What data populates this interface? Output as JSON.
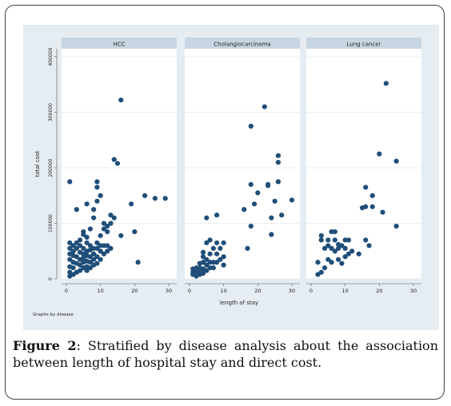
{
  "figure": {
    "label": "Figure 2",
    "caption": ": Stratified by disease analysis about the association between length of hospital stay and direct cost."
  },
  "chart_data": {
    "type": "scatter",
    "xlabel": "length of stay",
    "ylabel": "total cost",
    "note": "Graphs by disease",
    "xlim": [
      0,
      30
    ],
    "ylim": [
      0,
      400000
    ],
    "xticks": [
      0,
      10,
      20,
      30
    ],
    "yticks": [
      0,
      100000,
      200000,
      300000,
      400000
    ],
    "colors": {
      "point": "#1f4e79",
      "panel_bg": "#ffffff",
      "strip_bg": "#c8d6e3",
      "outer_bg": "#e5ecf2"
    },
    "panels": [
      {
        "title": "HCC",
        "points": [
          [
            1,
            5000
          ],
          [
            1,
            12000
          ],
          [
            1,
            22000
          ],
          [
            1,
            35000
          ],
          [
            1,
            45000
          ],
          [
            1,
            55000
          ],
          [
            1,
            65000
          ],
          [
            1,
            175000
          ],
          [
            2,
            8000
          ],
          [
            2,
            20000
          ],
          [
            2,
            30000
          ],
          [
            2,
            42000
          ],
          [
            2,
            50000
          ],
          [
            2,
            60000
          ],
          [
            3,
            12000
          ],
          [
            3,
            28000
          ],
          [
            3,
            40000
          ],
          [
            3,
            55000
          ],
          [
            3,
            65000
          ],
          [
            3,
            125000
          ],
          [
            4,
            15000
          ],
          [
            4,
            25000
          ],
          [
            4,
            35000
          ],
          [
            4,
            48000
          ],
          [
            4,
            60000
          ],
          [
            4,
            70000
          ],
          [
            5,
            20000
          ],
          [
            5,
            30000
          ],
          [
            5,
            38000
          ],
          [
            5,
            45000
          ],
          [
            5,
            55000
          ],
          [
            5,
            80000
          ],
          [
            5,
            85000
          ],
          [
            6,
            15000
          ],
          [
            6,
            22000
          ],
          [
            6,
            32000
          ],
          [
            6,
            42000
          ],
          [
            6,
            50000
          ],
          [
            6,
            65000
          ],
          [
            6,
            75000
          ],
          [
            6,
            135000
          ],
          [
            7,
            20000
          ],
          [
            7,
            30000
          ],
          [
            7,
            40000
          ],
          [
            7,
            52000
          ],
          [
            7,
            60000
          ],
          [
            7,
            90000
          ],
          [
            8,
            25000
          ],
          [
            8,
            35000
          ],
          [
            8,
            45000
          ],
          [
            8,
            55000
          ],
          [
            8,
            110000
          ],
          [
            8,
            125000
          ],
          [
            9,
            28000
          ],
          [
            9,
            40000
          ],
          [
            9,
            55000
          ],
          [
            9,
            65000
          ],
          [
            9,
            140000
          ],
          [
            9,
            165000
          ],
          [
            9,
            175000
          ],
          [
            10,
            35000
          ],
          [
            10,
            50000
          ],
          [
            10,
            60000
          ],
          [
            10,
            78000
          ],
          [
            10,
            150000
          ],
          [
            11,
            45000
          ],
          [
            11,
            60000
          ],
          [
            11,
            90000
          ],
          [
            11,
            100000
          ],
          [
            12,
            50000
          ],
          [
            12,
            60000
          ],
          [
            12,
            85000
          ],
          [
            12,
            95000
          ],
          [
            13,
            55000
          ],
          [
            13,
            100000
          ],
          [
            13,
            115000
          ],
          [
            14,
            110000
          ],
          [
            14,
            215000
          ],
          [
            15,
            208000
          ],
          [
            16,
            78000
          ],
          [
            16,
            322000
          ],
          [
            19,
            135000
          ],
          [
            20,
            85000
          ],
          [
            21,
            30000
          ],
          [
            23,
            150000
          ],
          [
            26,
            145000
          ],
          [
            29,
            145000
          ]
        ]
      },
      {
        "title": "Cholangiocarcinoma",
        "points": [
          [
            1,
            8000
          ],
          [
            1,
            12000
          ],
          [
            1,
            18000
          ],
          [
            2,
            5000
          ],
          [
            2,
            10000
          ],
          [
            2,
            16000
          ],
          [
            2,
            20000
          ],
          [
            3,
            8000
          ],
          [
            3,
            14000
          ],
          [
            3,
            20000
          ],
          [
            3,
            28000
          ],
          [
            4,
            10000
          ],
          [
            4,
            18000
          ],
          [
            4,
            30000
          ],
          [
            4,
            40000
          ],
          [
            4,
            48000
          ],
          [
            5,
            15000
          ],
          [
            5,
            25000
          ],
          [
            5,
            35000
          ],
          [
            5,
            65000
          ],
          [
            5,
            110000
          ],
          [
            6,
            20000
          ],
          [
            6,
            30000
          ],
          [
            6,
            45000
          ],
          [
            6,
            70000
          ],
          [
            7,
            20000
          ],
          [
            7,
            30000
          ],
          [
            7,
            55000
          ],
          [
            8,
            30000
          ],
          [
            8,
            45000
          ],
          [
            8,
            65000
          ],
          [
            8,
            115000
          ],
          [
            9,
            35000
          ],
          [
            9,
            55000
          ],
          [
            10,
            25000
          ],
          [
            10,
            40000
          ],
          [
            10,
            65000
          ],
          [
            16,
            125000
          ],
          [
            17,
            55000
          ],
          [
            18,
            95000
          ],
          [
            18,
            170000
          ],
          [
            18,
            275000
          ],
          [
            19,
            135000
          ],
          [
            20,
            155000
          ],
          [
            22,
            310000
          ],
          [
            23,
            170000
          ],
          [
            23,
            168000
          ],
          [
            24,
            80000
          ],
          [
            24,
            110000
          ],
          [
            25,
            140000
          ],
          [
            26,
            175000
          ],
          [
            26,
            210000
          ],
          [
            26,
            222000
          ],
          [
            27,
            115000
          ],
          [
            30,
            142000
          ]
        ]
      },
      {
        "title": "Lung cancer",
        "points": [
          [
            2,
            8000
          ],
          [
            2,
            30000
          ],
          [
            3,
            12000
          ],
          [
            3,
            70000
          ],
          [
            3,
            78000
          ],
          [
            4,
            20000
          ],
          [
            4,
            55000
          ],
          [
            5,
            35000
          ],
          [
            5,
            60000
          ],
          [
            5,
            70000
          ],
          [
            6,
            30000
          ],
          [
            6,
            55000
          ],
          [
            6,
            85000
          ],
          [
            7,
            50000
          ],
          [
            7,
            70000
          ],
          [
            7,
            85000
          ],
          [
            8,
            35000
          ],
          [
            8,
            55000
          ],
          [
            8,
            62000
          ],
          [
            9,
            28000
          ],
          [
            9,
            60000
          ],
          [
            10,
            40000
          ],
          [
            10,
            55000
          ],
          [
            10,
            70000
          ],
          [
            11,
            45000
          ],
          [
            11,
            70000
          ],
          [
            12,
            50000
          ],
          [
            14,
            45000
          ],
          [
            15,
            128000
          ],
          [
            16,
            70000
          ],
          [
            16,
            130000
          ],
          [
            16,
            165000
          ],
          [
            17,
            60000
          ],
          [
            18,
            130000
          ],
          [
            18,
            150000
          ],
          [
            20,
            225000
          ],
          [
            21,
            120000
          ],
          [
            22,
            352000
          ],
          [
            25,
            95000
          ],
          [
            25,
            212000
          ]
        ]
      }
    ]
  }
}
